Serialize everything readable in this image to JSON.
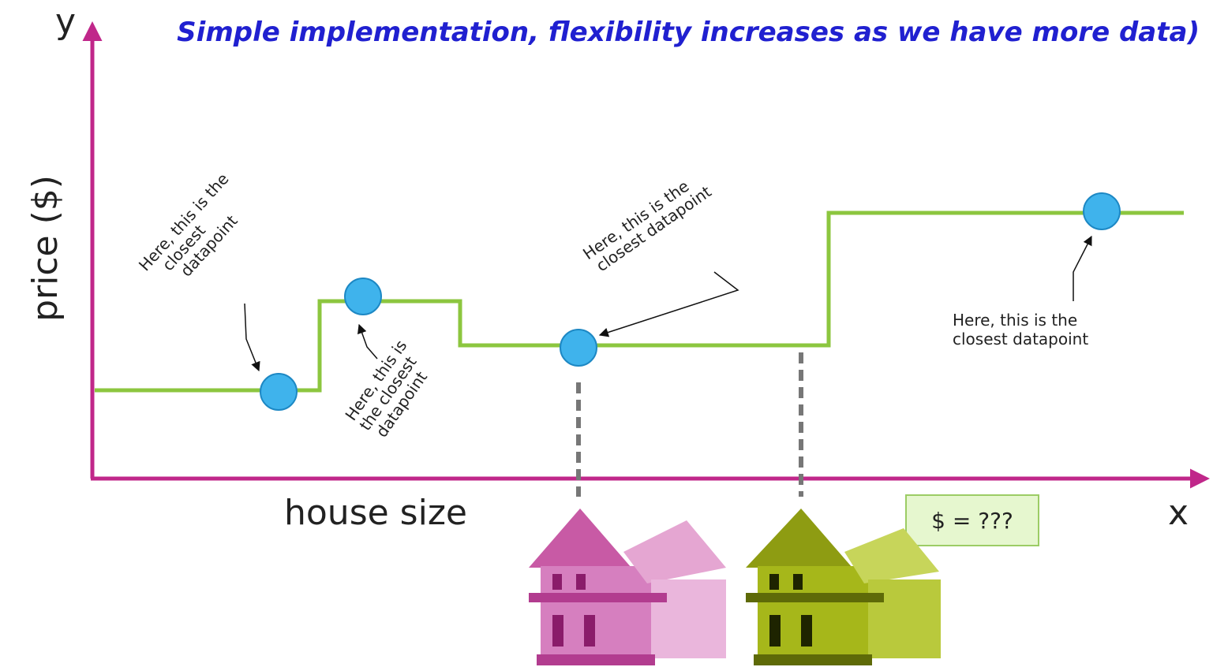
{
  "title": "Simple implementation,  flexibility increases as we have more data)",
  "axes": {
    "y_letter": "y",
    "x_letter": "x",
    "y_label": "price ($)",
    "x_label": "house size"
  },
  "annotations": [
    {
      "lines": [
        "Here, this is the",
        "closest",
        "datapoint"
      ]
    },
    {
      "lines": [
        "Here, this is",
        "the closest",
        "datapoint"
      ]
    },
    {
      "lines": [
        "Here, this is the",
        "closest datapoint"
      ]
    },
    {
      "lines": [
        "Here, this is the",
        "closest datapoint"
      ]
    }
  ],
  "query_box": "$ = ???"
}
